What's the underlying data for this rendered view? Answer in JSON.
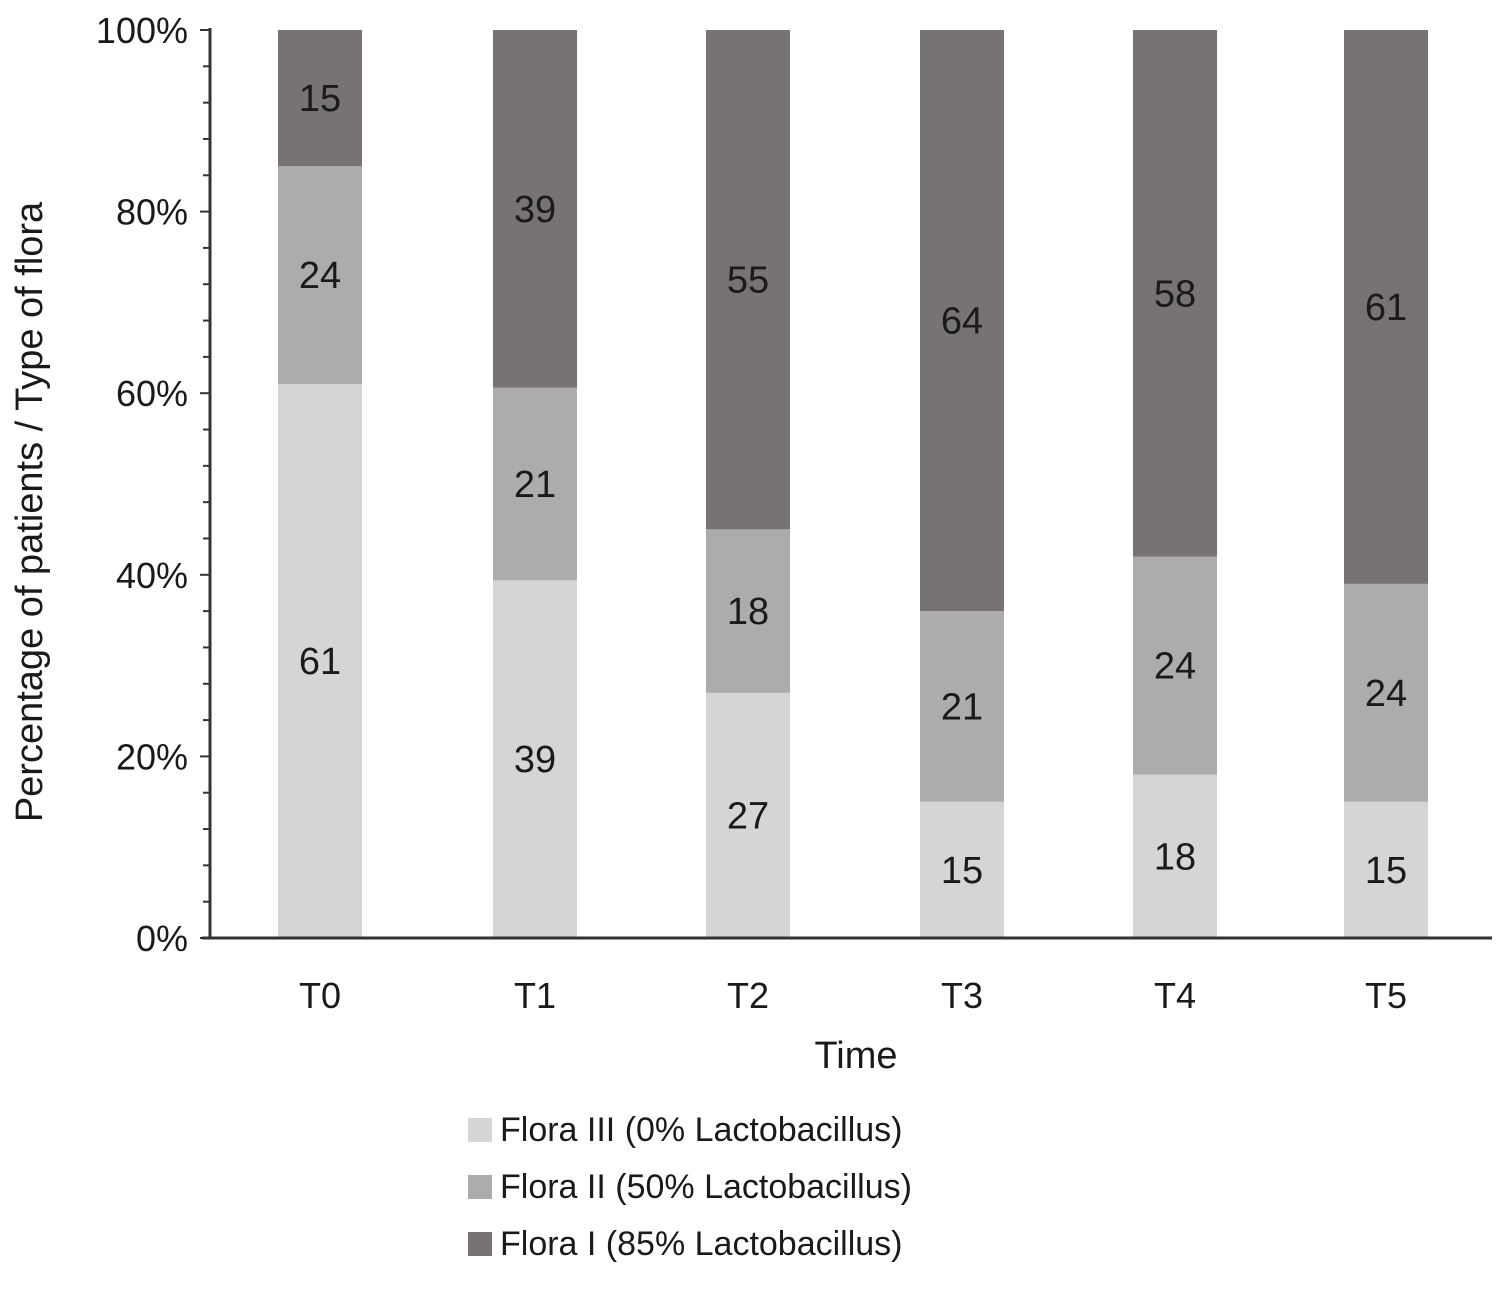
{
  "chart_data": {
    "type": "bar",
    "stacked": true,
    "categories": [
      "T0",
      "T1",
      "T2",
      "T3",
      "T4",
      "T5"
    ],
    "series": [
      {
        "name": "Flora III (0% Lactobacillus)",
        "values": [
          61,
          39,
          27,
          15,
          18,
          15
        ],
        "color": "#d6d5d6"
      },
      {
        "name": "Flora II (50% Lactobacillus)",
        "values": [
          24,
          21,
          18,
          21,
          24,
          24
        ],
        "color": "#adacab"
      },
      {
        "name": "Flora I (85% Lactobacillus)",
        "values": [
          15,
          39,
          55,
          64,
          58,
          61
        ],
        "color": "#767372"
      }
    ],
    "xlabel": "Time",
    "ylabel": "Percentage of patients / Type of flora",
    "ylim": [
      0,
      100
    ],
    "yticks": [
      "0%",
      "20%",
      "40%",
      "60%",
      "80%",
      "100%"
    ],
    "legend_position": "bottom",
    "grid": false
  }
}
